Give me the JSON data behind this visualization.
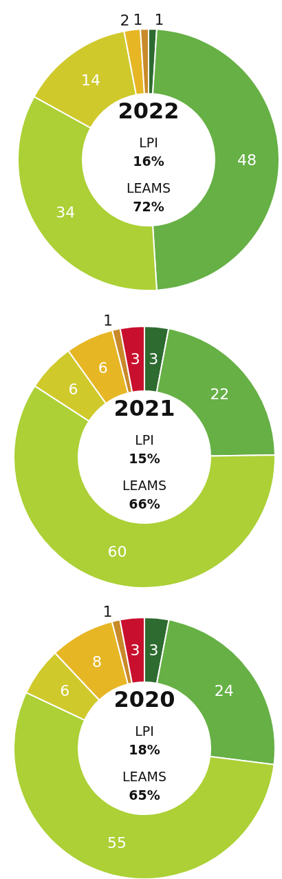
{
  "chart_data": [
    {
      "type": "donut",
      "title": "2022",
      "annotations": [
        "LPI",
        "16%",
        "LEAMS",
        "72%"
      ],
      "categories": [
        null,
        null,
        null,
        null,
        null,
        null
      ],
      "values": [
        1,
        48,
        34,
        14,
        2,
        1
      ],
      "colors": [
        "#2e6b30",
        "#66b045",
        "#acd035",
        "#cfc92c",
        "#e6b624",
        "#c98a2a"
      ],
      "data_labels": true
    },
    {
      "type": "donut",
      "title": "2021",
      "annotations": [
        "LPI",
        "15%",
        "LEAMS",
        "66%"
      ],
      "categories": [
        null,
        null,
        null,
        null,
        null,
        null,
        null
      ],
      "values": [
        3,
        22,
        60,
        6,
        6,
        1,
        3
      ],
      "colors": [
        "#2e6b30",
        "#66b045",
        "#acd035",
        "#cfc92c",
        "#e6b624",
        "#c98a2a",
        "#c8102e"
      ],
      "data_labels": true
    },
    {
      "type": "donut",
      "title": "2020",
      "annotations": [
        "LPI",
        "18%",
        "LEAMS",
        "65%"
      ],
      "categories": [
        null,
        null,
        null,
        null,
        null,
        null,
        null
      ],
      "values": [
        3,
        24,
        55,
        6,
        8,
        1,
        3
      ],
      "colors": [
        "#2e6b30",
        "#66b045",
        "#acd035",
        "#cfc92c",
        "#e6b624",
        "#c98a2a",
        "#c8102e"
      ],
      "data_labels": true
    }
  ]
}
